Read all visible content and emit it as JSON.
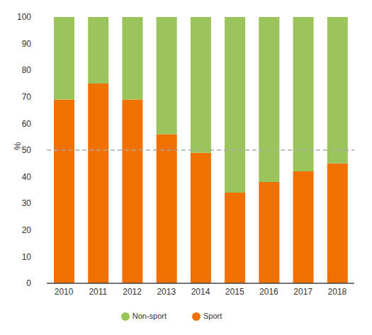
{
  "chart_data": {
    "type": "bar",
    "categories": [
      "2010",
      "2011",
      "2012",
      "2013",
      "2014",
      "2015",
      "2016",
      "2017",
      "2018"
    ],
    "series": [
      {
        "name": "Sport",
        "color": "#f07000",
        "values": [
          69,
          75,
          69,
          56,
          49,
          34,
          38,
          42,
          45
        ]
      },
      {
        "name": "Non-sport",
        "color": "#9bc45a",
        "values": [
          31,
          25,
          31,
          44,
          51,
          66,
          62,
          58,
          55
        ]
      }
    ],
    "y_label": "%",
    "ylim": [
      0,
      100
    ],
    "yticks": [
      0,
      10,
      20,
      30,
      40,
      50,
      60,
      70,
      80,
      90,
      100
    ],
    "reference_line": 50,
    "stacked": true,
    "grid": false,
    "legend": "bottom"
  }
}
